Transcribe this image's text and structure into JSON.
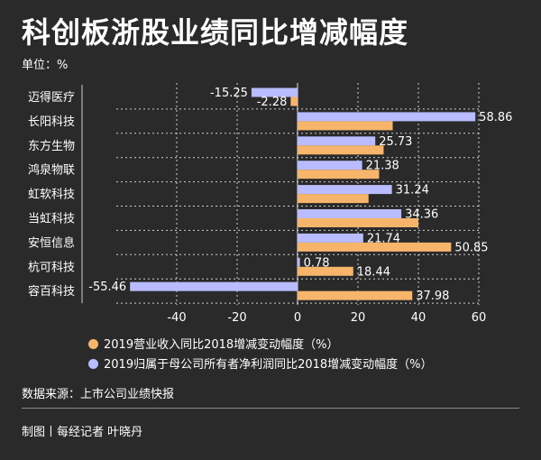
{
  "title": "科创板浙股业绩同比增减幅度",
  "unit": "单位：%",
  "source": "数据来源：上市公司业绩快报",
  "credit": "制图丨每经记者 叶晓丹",
  "colors": {
    "revenue": "#f7b56b",
    "profit": "#b9bcff",
    "background": "#2a2a2a"
  },
  "chart_data": {
    "type": "bar",
    "orientation": "horizontal",
    "categories": [
      "迈得医疗",
      "长阳科技",
      "东方生物",
      "鸿泉物联",
      "虹软科技",
      "当虹科技",
      "安恒信息",
      "杭可科技",
      "容百科技"
    ],
    "series": [
      {
        "name": "2019归属于母公司所有者净利润同比2018增减变动幅度（%）",
        "values": [
          -15.25,
          58.86,
          25.73,
          21.38,
          31.24,
          34.36,
          21.74,
          0.78,
          -55.46
        ]
      },
      {
        "name": "2019营业收入同比2018增减变动幅度（%）",
        "values": [
          -2.28,
          31.5,
          28.5,
          27,
          23.5,
          40,
          50.85,
          18.44,
          37.98
        ]
      }
    ],
    "labels": [
      [
        "-15.25",
        "-2.28"
      ],
      [
        "58.86",
        ""
      ],
      [
        "25.73",
        ""
      ],
      [
        "21.38",
        ""
      ],
      [
        "31.24",
        ""
      ],
      [
        "34.36",
        ""
      ],
      [
        "21.74",
        "50.85"
      ],
      [
        "0.78",
        "18.44"
      ],
      [
        "-55.46",
        "37.98"
      ]
    ],
    "xlim": [
      -60,
      60
    ],
    "xticks": [
      "-40",
      "-20",
      "0",
      "20",
      "40",
      "60"
    ],
    "grid": true,
    "legend": [
      "2019营业收入同比2018增减变动幅度（%）",
      "2019归属于母公司所有者净利润同比2018增减变动幅度（%）"
    ]
  }
}
